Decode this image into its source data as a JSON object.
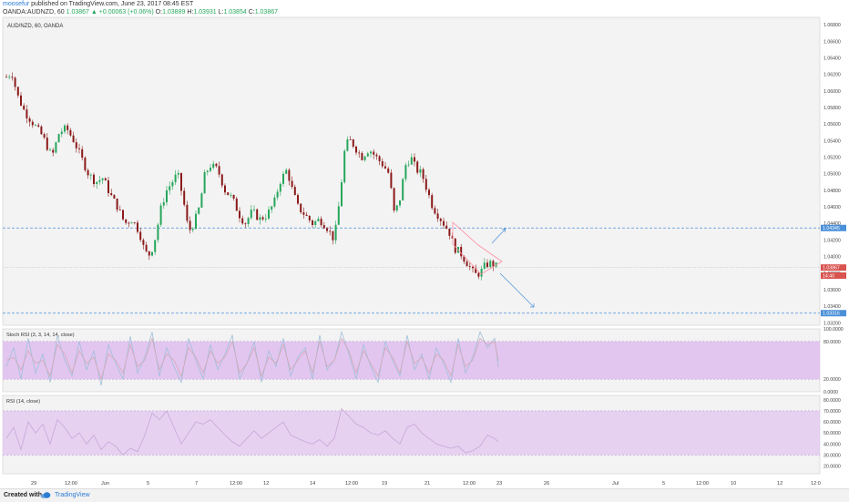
{
  "header": {
    "user": "moosefur",
    "published": "published on TradingView.com, June 23, 2017 08:45 EST",
    "symbol": "OANDA:AUDNZD, 60",
    "last": "1.03867",
    "change": "▲ +0.00063 (+0.06%)",
    "o_label": "O:",
    "o": "1.03889",
    "h_label": "H:",
    "h": "1.03931",
    "l_label": "L:",
    "l": "1.03854",
    "c_label": "C:",
    "c": "1.03867"
  },
  "footer": {
    "created": "Created with",
    "brand": "TradingView"
  },
  "colors": {
    "up": "#26a65b",
    "down": "#8b1a1a",
    "bg": "#f3f3f3",
    "rsi_band": "#e2c6f0",
    "accent": "#2a7bd4"
  },
  "chart_data": [
    {
      "type": "candlestick",
      "title": "AUD/NZD, 60, OANDA",
      "x_ticks": [
        "29",
        "12:00",
        "Jun",
        "5",
        "7",
        "12:00",
        "12",
        "14",
        "12:00",
        "19",
        "21",
        "12:00",
        "23",
        "26",
        "Jul",
        "5",
        "12:00",
        "10",
        "12",
        "12:0"
      ],
      "y_ticks": [
        "1.06800",
        "1.06600",
        "1.06400",
        "1.06200",
        "1.06000",
        "1.05800",
        "1.05600",
        "1.05400",
        "1.05200",
        "1.05000",
        "1.04800",
        "1.04600",
        "1.04400",
        "1.04200",
        "1.04000",
        "1.03800",
        "1.03600",
        "1.03400",
        "1.03200"
      ],
      "ylim": [
        1.0317,
        1.0689
      ],
      "price_badges": [
        {
          "label": "1.04345",
          "value": 1.04345,
          "color": "#4a90d9"
        },
        {
          "label": "1.03867",
          "value": 1.03867,
          "color": "#d9534f"
        },
        {
          "label": "14:40",
          "value": 1.0377,
          "color": "#d9534f"
        },
        {
          "label": "1.03316",
          "value": 1.03316,
          "color": "#4a90d9"
        }
      ],
      "horizontal_lines": [
        {
          "value": 1.04345,
          "style": "dashed",
          "color": "#4a90d9"
        },
        {
          "value": 1.03316,
          "style": "dashed",
          "color": "#4a90d9"
        },
        {
          "value": 1.03867,
          "style": "dotted",
          "color": "#bbbbbb"
        }
      ],
      "path": [
        [
          0,
          1.0617
        ],
        [
          6,
          1.0622
        ],
        [
          12,
          1.0595
        ],
        [
          20,
          1.0575
        ],
        [
          30,
          1.056
        ],
        [
          40,
          1.0545
        ],
        [
          50,
          1.052
        ],
        [
          58,
          1.055
        ],
        [
          66,
          1.0555
        ],
        [
          74,
          1.054
        ],
        [
          82,
          1.052
        ],
        [
          90,
          1.05
        ],
        [
          98,
          1.049
        ],
        [
          106,
          1.0495
        ],
        [
          114,
          1.0475
        ],
        [
          122,
          1.046
        ],
        [
          130,
          1.044
        ],
        [
          138,
          1.0445
        ],
        [
          146,
          1.043
        ],
        [
          152,
          1.0405
        ],
        [
          158,
          1.0402
        ],
        [
          164,
          1.0425
        ],
        [
          170,
          1.046
        ],
        [
          176,
          1.048
        ],
        [
          182,
          1.049
        ],
        [
          188,
          1.05
        ],
        [
          194,
          1.047
        ],
        [
          200,
          1.043
        ],
        [
          206,
          1.044
        ],
        [
          212,
          1.046
        ],
        [
          218,
          1.05
        ],
        [
          224,
          1.051
        ],
        [
          232,
          1.0505
        ],
        [
          240,
          1.048
        ],
        [
          248,
          1.047
        ],
        [
          256,
          1.045
        ],
        [
          262,
          1.044
        ],
        [
          270,
          1.0455
        ],
        [
          278,
          1.0445
        ],
        [
          286,
          1.045
        ],
        [
          294,
          1.0465
        ],
        [
          300,
          1.049
        ],
        [
          308,
          1.0505
        ],
        [
          314,
          1.048
        ],
        [
          320,
          1.046
        ],
        [
          328,
          1.045
        ],
        [
          336,
          1.044
        ],
        [
          344,
          1.0445
        ],
        [
          352,
          1.0435
        ],
        [
          360,
          1.042
        ],
        [
          366,
          1.047
        ],
        [
          372,
          1.0535
        ],
        [
          378,
          1.054
        ],
        [
          384,
          1.053
        ],
        [
          390,
          1.052
        ],
        [
          398,
          1.053
        ],
        [
          406,
          1.052
        ],
        [
          414,
          1.051
        ],
        [
          420,
          1.05
        ],
        [
          426,
          1.045
        ],
        [
          432,
          1.047
        ],
        [
          438,
          1.051
        ],
        [
          444,
          1.052
        ],
        [
          450,
          1.0505
        ],
        [
          456,
          1.05
        ],
        [
          462,
          1.048
        ],
        [
          468,
          1.046
        ],
        [
          474,
          1.045
        ],
        [
          480,
          1.044
        ],
        [
          486,
          1.043
        ],
        [
          492,
          1.041
        ],
        [
          498,
          1.0405
        ],
        [
          504,
          1.0395
        ],
        [
          510,
          1.0385
        ],
        [
          514,
          1.0378
        ],
        [
          520,
          1.038
        ],
        [
          526,
          1.039
        ],
        [
          532,
          1.0392
        ],
        [
          538,
          1.0388
        ],
        [
          542,
          1.0387
        ]
      ]
    },
    {
      "type": "line",
      "title": "Stoch RSI (3, 3, 14, 14, close)",
      "y_ticks": [
        "100.0000",
        "80.0000",
        "20.0000",
        "0.0000"
      ],
      "ylim": [
        0,
        100
      ],
      "band": [
        20,
        80
      ],
      "x": [
        0,
        8,
        16,
        24,
        32,
        40,
        48,
        56,
        64,
        72,
        80,
        88,
        96,
        104,
        112,
        120,
        128,
        136,
        144,
        152,
        160,
        168,
        176,
        184,
        192,
        200,
        208,
        216,
        224,
        232,
        240,
        248,
        256,
        264,
        272,
        280,
        288,
        296,
        304,
        312,
        320,
        328,
        336,
        344,
        352,
        360,
        368,
        376,
        384,
        392,
        400,
        408,
        416,
        424,
        432,
        440,
        448,
        456,
        464,
        472,
        480,
        488,
        496,
        504,
        512,
        520,
        528,
        536,
        540
      ],
      "series": [
        {
          "values": [
            40,
            70,
            20,
            85,
            30,
            60,
            15,
            90,
            50,
            25,
            80,
            35,
            65,
            10,
            75,
            45,
            20,
            88,
            30,
            55,
            95,
            25,
            70,
            40,
            15,
            85,
            50,
            20,
            75,
            35,
            60,
            90,
            20,
            45,
            80,
            15,
            65,
            40,
            85,
            25,
            55,
            70,
            20,
            90,
            35,
            50,
            95,
            60,
            20,
            75,
            40,
            15,
            80,
            50,
            25,
            90,
            35,
            60,
            20,
            70,
            45,
            15,
            85,
            30,
            55,
            95,
            70,
            85,
            40
          ]
        },
        {
          "values": [
            50,
            55,
            35,
            65,
            45,
            50,
            25,
            75,
            60,
            30,
            65,
            45,
            55,
            20,
            60,
            50,
            30,
            75,
            40,
            50,
            85,
            35,
            60,
            50,
            25,
            70,
            55,
            30,
            65,
            45,
            55,
            80,
            30,
            45,
            70,
            25,
            55,
            45,
            75,
            35,
            50,
            65,
            30,
            80,
            40,
            50,
            85,
            65,
            30,
            65,
            45,
            25,
            70,
            55,
            30,
            80,
            45,
            55,
            30,
            60,
            50,
            25,
            75,
            40,
            50,
            85,
            75,
            80,
            50
          ]
        }
      ]
    },
    {
      "type": "line",
      "title": "RSI (14, close)",
      "y_ticks": [
        "80.0000",
        "70.0000",
        "60.0000",
        "50.0000",
        "40.0000",
        "30.0000",
        "20.0000"
      ],
      "ylim": [
        13,
        84
      ],
      "band": [
        30,
        70
      ],
      "x": [
        0,
        8,
        16,
        24,
        32,
        40,
        48,
        56,
        64,
        72,
        80,
        88,
        96,
        104,
        112,
        120,
        128,
        136,
        144,
        152,
        160,
        168,
        176,
        184,
        192,
        200,
        208,
        216,
        224,
        232,
        240,
        248,
        256,
        264,
        272,
        280,
        288,
        296,
        304,
        312,
        320,
        328,
        336,
        344,
        352,
        360,
        368,
        376,
        384,
        392,
        400,
        408,
        416,
        424,
        432,
        440,
        448,
        456,
        464,
        472,
        480,
        488,
        496,
        504,
        512,
        520,
        528,
        536,
        540
      ],
      "series": [
        {
          "values": [
            45,
            55,
            35,
            60,
            50,
            58,
            40,
            62,
            55,
            45,
            50,
            40,
            48,
            35,
            42,
            38,
            30,
            36,
            33,
            48,
            68,
            62,
            70,
            55,
            40,
            50,
            60,
            58,
            62,
            55,
            48,
            42,
            38,
            45,
            52,
            45,
            50,
            55,
            60,
            48,
            45,
            42,
            40,
            44,
            38,
            45,
            72,
            65,
            58,
            55,
            50,
            48,
            52,
            45,
            40,
            55,
            58,
            50,
            45,
            40,
            38,
            36,
            38,
            32,
            34,
            38,
            48,
            45,
            42
          ]
        }
      ]
    }
  ]
}
